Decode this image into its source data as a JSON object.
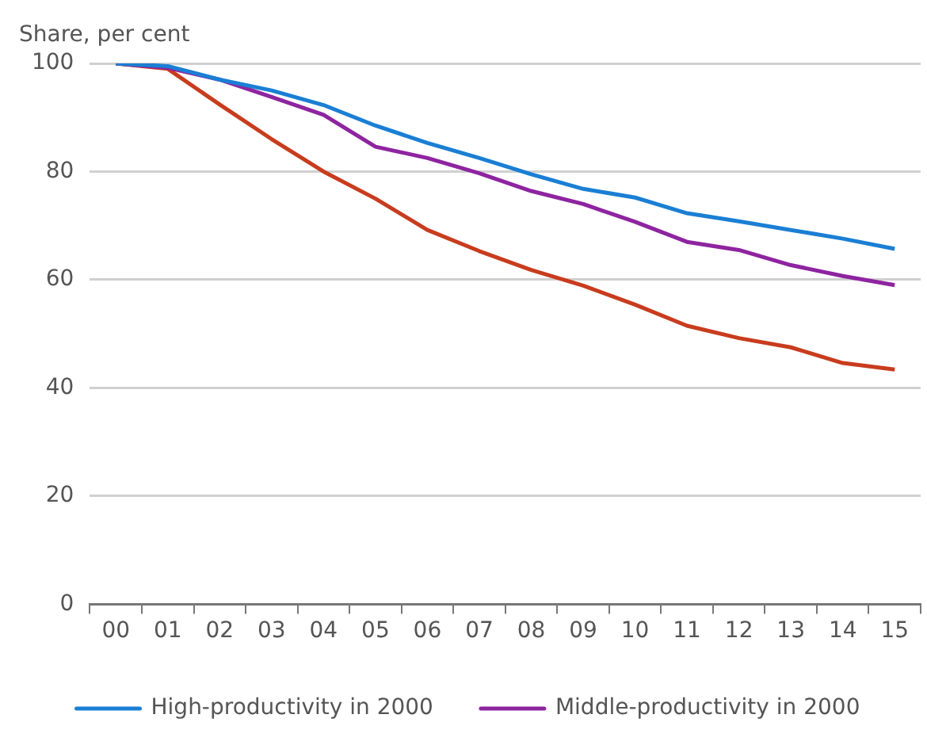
{
  "chart_data": {
    "type": "line",
    "ylabel": "Share, per cent",
    "categories": [
      "00",
      "01",
      "02",
      "03",
      "04",
      "05",
      "06",
      "07",
      "08",
      "09",
      "10",
      "11",
      "12",
      "13",
      "14",
      "15"
    ],
    "series": [
      {
        "name": "High-productivity in 2000",
        "color": "#1a7fd4",
        "values": [
          100,
          99.5,
          97,
          95,
          92.3,
          88.5,
          85.3,
          82.5,
          79.5,
          76.8,
          75.2,
          72.3,
          70.8,
          69.2,
          67.6,
          65.7
        ]
      },
      {
        "name": "Middle-productivity in 2000",
        "color": "#8e24a0",
        "values": [
          100,
          99.2,
          97,
          93.8,
          90.5,
          84.6,
          82.5,
          79.7,
          76.4,
          74,
          70.7,
          67,
          65.5,
          62.7,
          60.7,
          59
        ]
      },
      {
        "color": "#c83c1e",
        "values": [
          100,
          99,
          92.4,
          86,
          80,
          75,
          69.2,
          65.3,
          61.8,
          58.9,
          55.4,
          51.5,
          49.2,
          47.5,
          44.6,
          43.4
        ]
      }
    ],
    "ylim": [
      0,
      100
    ],
    "yticks": [
      0,
      20,
      40,
      60,
      80,
      100
    ],
    "grid": "y",
    "legend": "bottom",
    "marker": "none",
    "line_style": "solid"
  }
}
